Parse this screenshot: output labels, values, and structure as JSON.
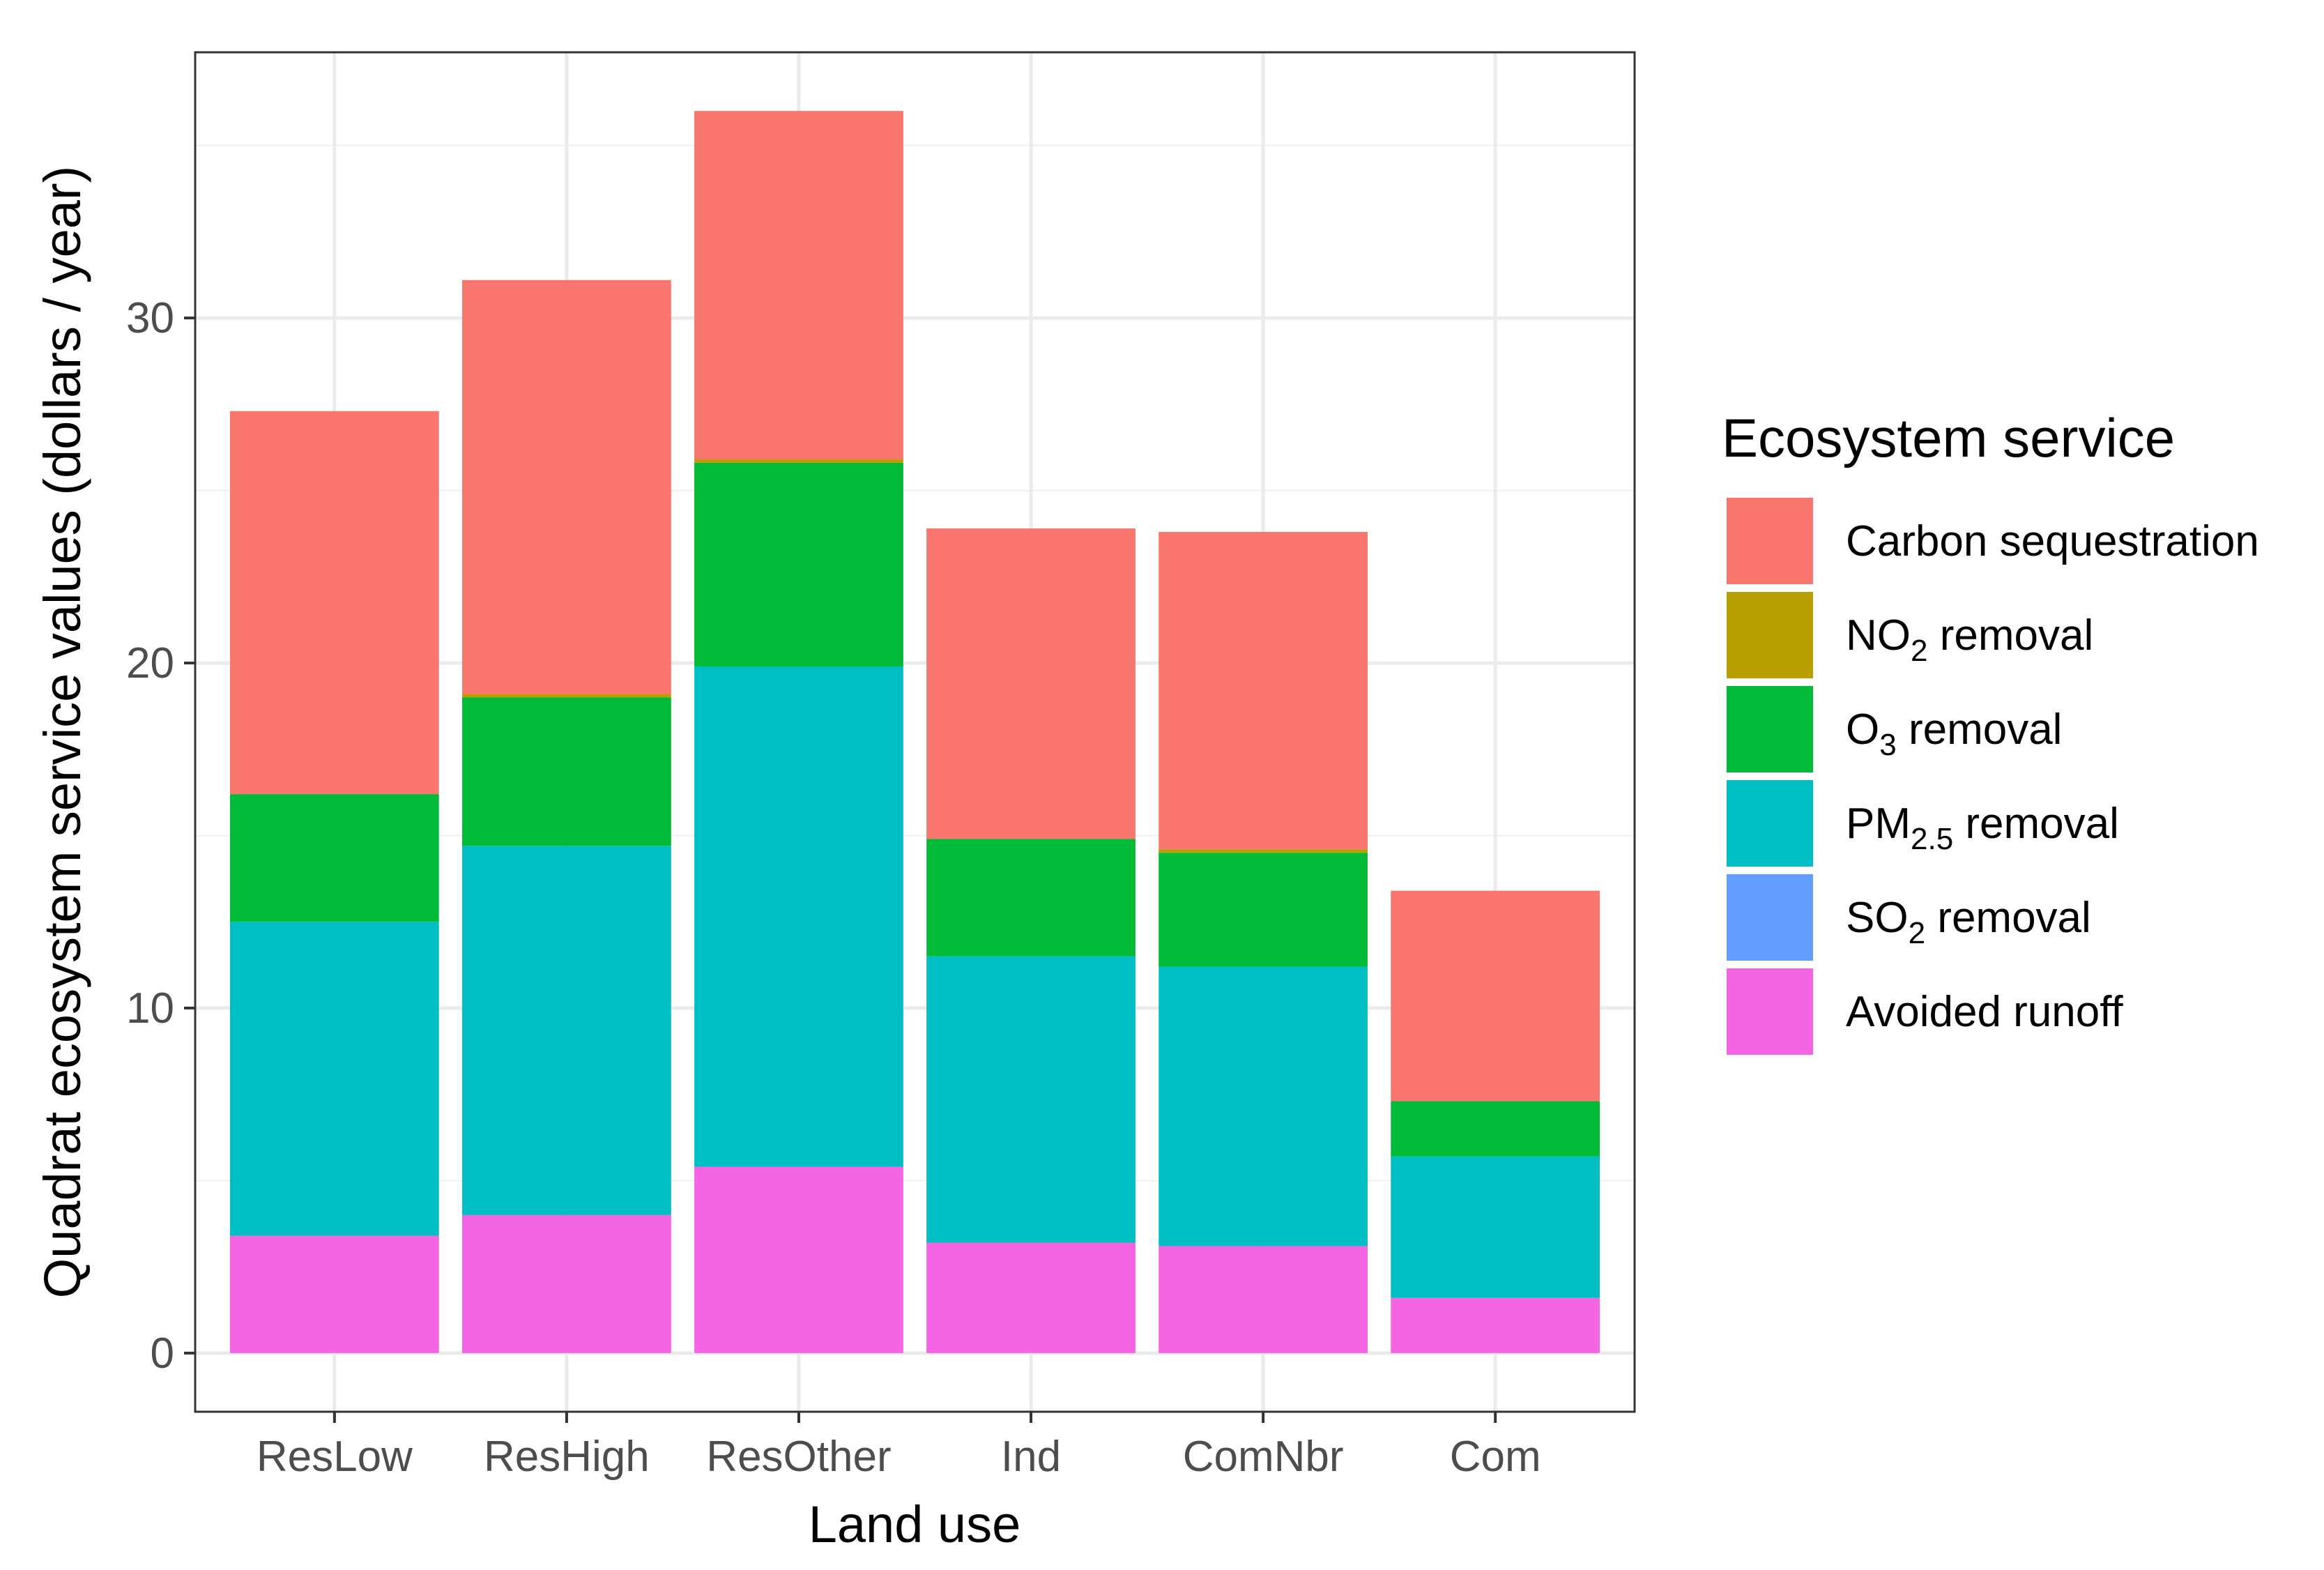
{
  "chart_data": {
    "type": "bar",
    "stacked": true,
    "title": "",
    "xlabel": "Land use",
    "ylabel": "Quadrat ecosystem service values (dollars / year)",
    "ylim": [
      -1.7,
      37.7
    ],
    "yticks": [
      0,
      10,
      20,
      30
    ],
    "grid": true,
    "legend_position": "right",
    "legend_title": "Ecosystem service",
    "categories": [
      "ResLow",
      "ResHigh",
      "ResOther",
      "Ind",
      "ComNbr",
      "Com"
    ],
    "series": [
      {
        "name": "Avoided runoff",
        "legend_main": "Avoided runoff",
        "legend_sub": "",
        "legend_tail": "",
        "color": "#F564E3",
        "values": [
          3.4,
          4.0,
          5.4,
          3.2,
          3.1,
          1.6
        ]
      },
      {
        "name": "SO2 removal",
        "legend_main": "SO",
        "legend_sub": "2",
        "legend_tail": " removal",
        "color": "#619CFF",
        "values": [
          0.0,
          0.0,
          0.0,
          0.0,
          0.0,
          0.0
        ]
      },
      {
        "name": "PM2.5 removal",
        "legend_main": "PM",
        "legend_sub": "2.5",
        "legend_tail": " removal",
        "color": "#00BFC4",
        "values": [
          9.1,
          10.7,
          14.5,
          8.3,
          8.1,
          4.1
        ]
      },
      {
        "name": "O3 removal",
        "legend_main": "O",
        "legend_sub": "3",
        "legend_tail": " removal",
        "color": "#00BA38",
        "values": [
          3.7,
          4.3,
          5.9,
          3.4,
          3.3,
          1.6
        ]
      },
      {
        "name": "NO2 removal",
        "legend_main": "NO",
        "legend_sub": "2",
        "legend_tail": " removal",
        "color": "#B79F00",
        "values": [
          0.0,
          0.1,
          0.1,
          0.0,
          0.1,
          0.0
        ]
      },
      {
        "name": "Carbon sequestration",
        "legend_main": "Carbon sequestration",
        "legend_sub": "",
        "legend_tail": "",
        "color": "#F8766D",
        "values": [
          11.1,
          12.0,
          10.1,
          9.0,
          9.2,
          6.1
        ]
      }
    ],
    "legend_order": [
      "Carbon sequestration",
      "NO2 removal",
      "O3 removal",
      "PM2.5 removal",
      "SO2 removal",
      "Avoided runoff"
    ]
  }
}
